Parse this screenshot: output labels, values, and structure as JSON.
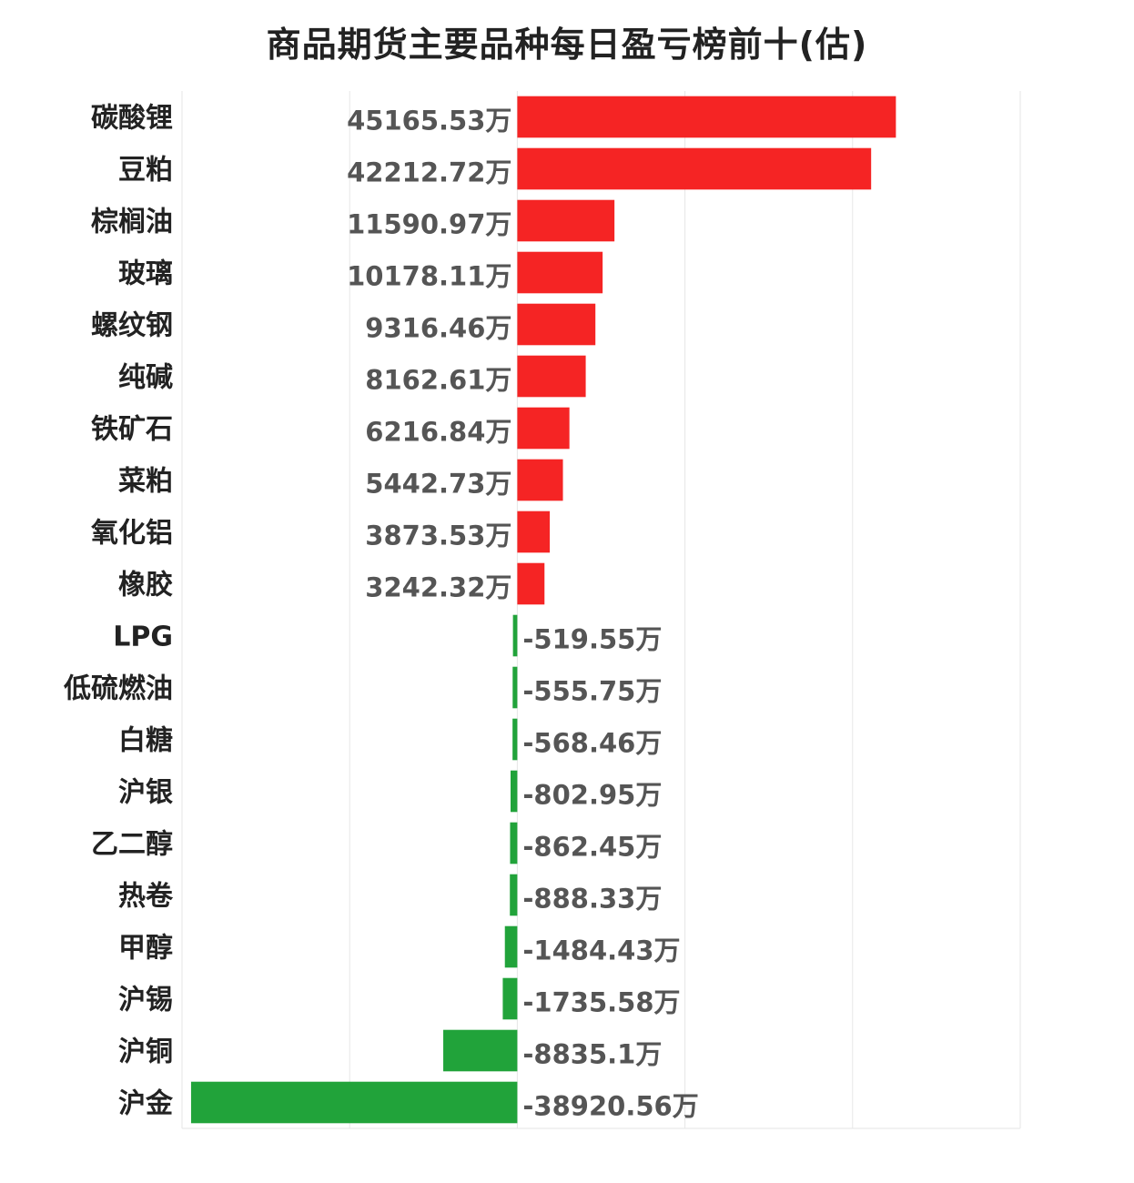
{
  "chart_data": {
    "type": "bar",
    "orientation": "horizontal",
    "title": "商品期货主要品种每日盈亏榜前十(估)",
    "unit_suffix": "万",
    "categories": [
      "碳酸锂",
      "豆粕",
      "棕榈油",
      "玻璃",
      "螺纹钢",
      "纯碱",
      "铁矿石",
      "菜粕",
      "氧化铝",
      "橡胶",
      "LPG",
      "低硫燃油",
      "白糖",
      "沪银",
      "乙二醇",
      "热卷",
      "甲醇",
      "沪锡",
      "沪铜",
      "沪金"
    ],
    "values": [
      45165.53,
      42212.72,
      11590.97,
      10178.11,
      9316.46,
      8162.61,
      6216.84,
      5442.73,
      3873.53,
      3242.32,
      -519.55,
      -555.75,
      -568.46,
      -802.95,
      -862.45,
      -888.33,
      -1484.43,
      -1735.58,
      -8835.1,
      -38920.56
    ],
    "value_labels": [
      "45165.53万",
      "42212.72万",
      "11590.97万",
      "10178.11万",
      "9316.46万",
      "8162.61万",
      "6216.84万",
      "5442.73万",
      "3873.53万",
      "3242.32万",
      "-519.55万",
      "-555.75万",
      "-568.46万",
      "-802.95万",
      "-862.45万",
      "-888.33万",
      "-1484.43万",
      "-1735.58万",
      "-8835.1万",
      "-38920.56万"
    ],
    "xlim": [
      -40000,
      60000
    ],
    "grid_step": 20000,
    "grid": true,
    "colors": {
      "positive": "#f52424",
      "negative": "#21a33a",
      "grid": "#e6e6e6"
    }
  }
}
